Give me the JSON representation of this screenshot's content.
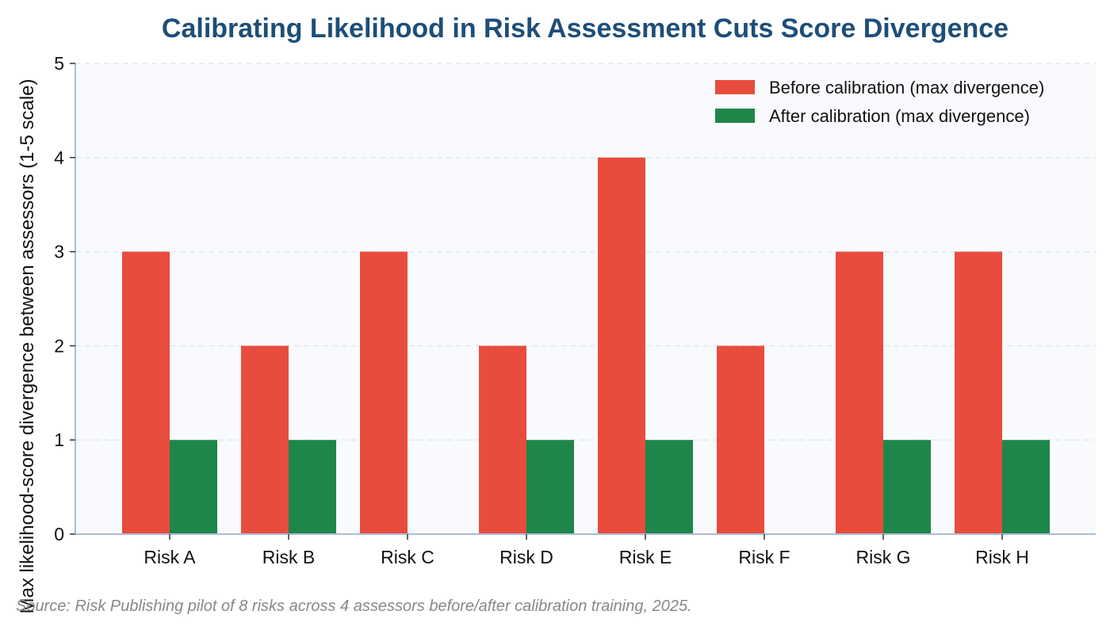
{
  "chart_data": {
    "type": "bar",
    "title": "Calibrating Likelihood in Risk Assessment Cuts Score Divergence",
    "ylabel": "Max likelihood-score divergence between assessors (1-5 scale)",
    "xlabel": "",
    "categories": [
      "Risk A",
      "Risk B",
      "Risk C",
      "Risk D",
      "Risk E",
      "Risk F",
      "Risk G",
      "Risk H"
    ],
    "series": [
      {
        "name": "Before calibration (max divergence)",
        "color": "#e84c3d",
        "values": [
          3,
          2,
          3,
          2,
          4,
          2,
          3,
          3
        ]
      },
      {
        "name": "After calibration (max divergence)",
        "color": "#1e864b",
        "values": [
          1,
          1,
          0,
          1,
          1,
          0,
          1,
          1
        ]
      }
    ],
    "ylim": [
      0,
      5
    ],
    "yticks": [
      0,
      1,
      2,
      3,
      4,
      5
    ],
    "grid": true,
    "legend_position": "top-right",
    "source": "Source: Risk Publishing pilot of 8 risks across 4 assessors before/after calibration training, 2025."
  },
  "colors": {
    "title": "#1d4e79",
    "axis": "#aabcd8",
    "grid": "#e3e8f0",
    "plot_background": "#f9fafd"
  }
}
